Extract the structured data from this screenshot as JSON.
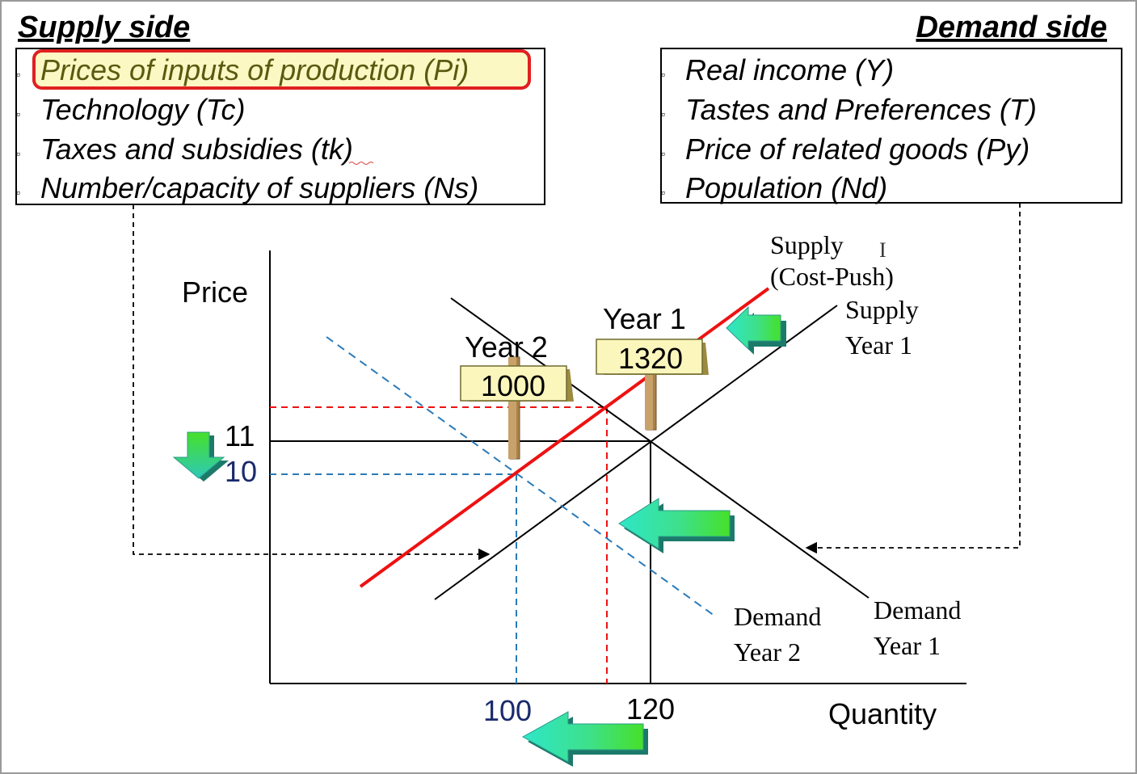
{
  "supply_side": {
    "heading": "Supply side",
    "items": [
      "Prices of inputs of production (Pi)",
      "Technology (Tc)",
      "Taxes and subsidies (tk)",
      "Number/capacity of suppliers (Ns)"
    ],
    "highlighted_item": "Prices of inputs of production (Pi)"
  },
  "demand_side": {
    "heading": "Demand side",
    "items": [
      "Real income (Y)",
      "Tastes and Preferences (T)",
      "Price of related goods (Py)",
      "Population (Nd)"
    ]
  },
  "bullet_glyph": "▫",
  "axes": {
    "y_label": "Price",
    "x_label": "Quantity",
    "y_ticks": [
      "11",
      "10"
    ],
    "x_ticks": [
      "100",
      "120"
    ]
  },
  "curves": {
    "supply_cost_push": [
      "Supply",
      "(Cost-Push)"
    ],
    "supply_year1": [
      "Supply",
      "Year 1"
    ],
    "demand_year2": [
      "Demand",
      "Year 2"
    ],
    "demand_year1": [
      "Demand",
      "Year 1"
    ]
  },
  "signs": {
    "year2": {
      "label": "Year 2",
      "value": "1000"
    },
    "year1": {
      "label": "Year 1",
      "value": "1320"
    }
  },
  "cursor_glyph": "I",
  "colors": {
    "red_curve": "#ee1111",
    "demand_year2": "#2a7ab8",
    "sign_fill": "#fbf6bc",
    "post": "#c8a26a",
    "highlight_fill": "#fbf8c4",
    "highlight_border": "#e02020",
    "tick_blue": "#1a2a6c",
    "arrow_from": "#2ee6c8",
    "arrow_to": "#46e02a"
  }
}
